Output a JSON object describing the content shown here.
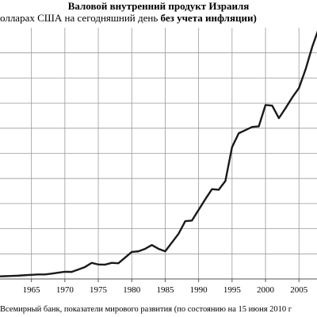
{
  "chart_data": {
    "type": "line",
    "title": "Валовой внутренний продукт Израиля",
    "subtitle_plain": "олларах США на сегодняшний день ",
    "subtitle_bold": "без учета инфляции)",
    "source": "Всемирный банк, показатели мирового развития (по состоянию на 15 июня 2010 г",
    "x_tick_labels": [
      "1965",
      "1970",
      "1975",
      "1980",
      "1985",
      "1990",
      "1995",
      "2000",
      "2005"
    ],
    "x_ticks": [
      1965,
      1970,
      1975,
      1980,
      1985,
      1990,
      1995,
      2000,
      2005
    ],
    "xlim": [
      1960.3,
      2007.7
    ],
    "ylim": [
      0,
      200
    ],
    "y_gridlines": [
      0,
      20,
      40,
      60,
      80,
      100,
      120,
      140,
      160,
      180
    ],
    "grid": true,
    "series": [
      {
        "color": "#1a1a1a",
        "x": [
          1960,
          1961,
          1962,
          1963,
          1964,
          1965,
          1966,
          1967,
          1968,
          1969,
          1970,
          1971,
          1972,
          1973,
          1974,
          1975,
          1976,
          1977,
          1978,
          1979,
          1980,
          1981,
          1982,
          1983,
          1984,
          1985,
          1986,
          1987,
          1988,
          1989,
          1990,
          1991,
          1992,
          1993,
          1994,
          1995,
          1996,
          1997,
          1998,
          1999,
          2000,
          2001,
          2002,
          2003,
          2004,
          2005,
          2006,
          2007,
          2008
        ],
        "values": [
          2.0,
          2.2,
          2.4,
          2.6,
          3.0,
          3.3,
          3.6,
          3.6,
          4.2,
          5.0,
          5.7,
          5.6,
          7.5,
          9.5,
          12.8,
          11.5,
          11.4,
          12.8,
          12.5,
          17.0,
          21.5,
          22.0,
          24.0,
          27.0,
          24.0,
          22.0,
          29.0,
          36.0,
          46.0,
          46.5,
          55.0,
          63.5,
          71.5,
          71.0,
          78.0,
          105.0,
          116.0,
          118.5,
          121.0,
          121.5,
          138.5,
          138.0,
          128.0,
          136.0,
          144.5,
          152.0,
          167.0,
          185.0,
          200.0
        ]
      }
    ]
  }
}
